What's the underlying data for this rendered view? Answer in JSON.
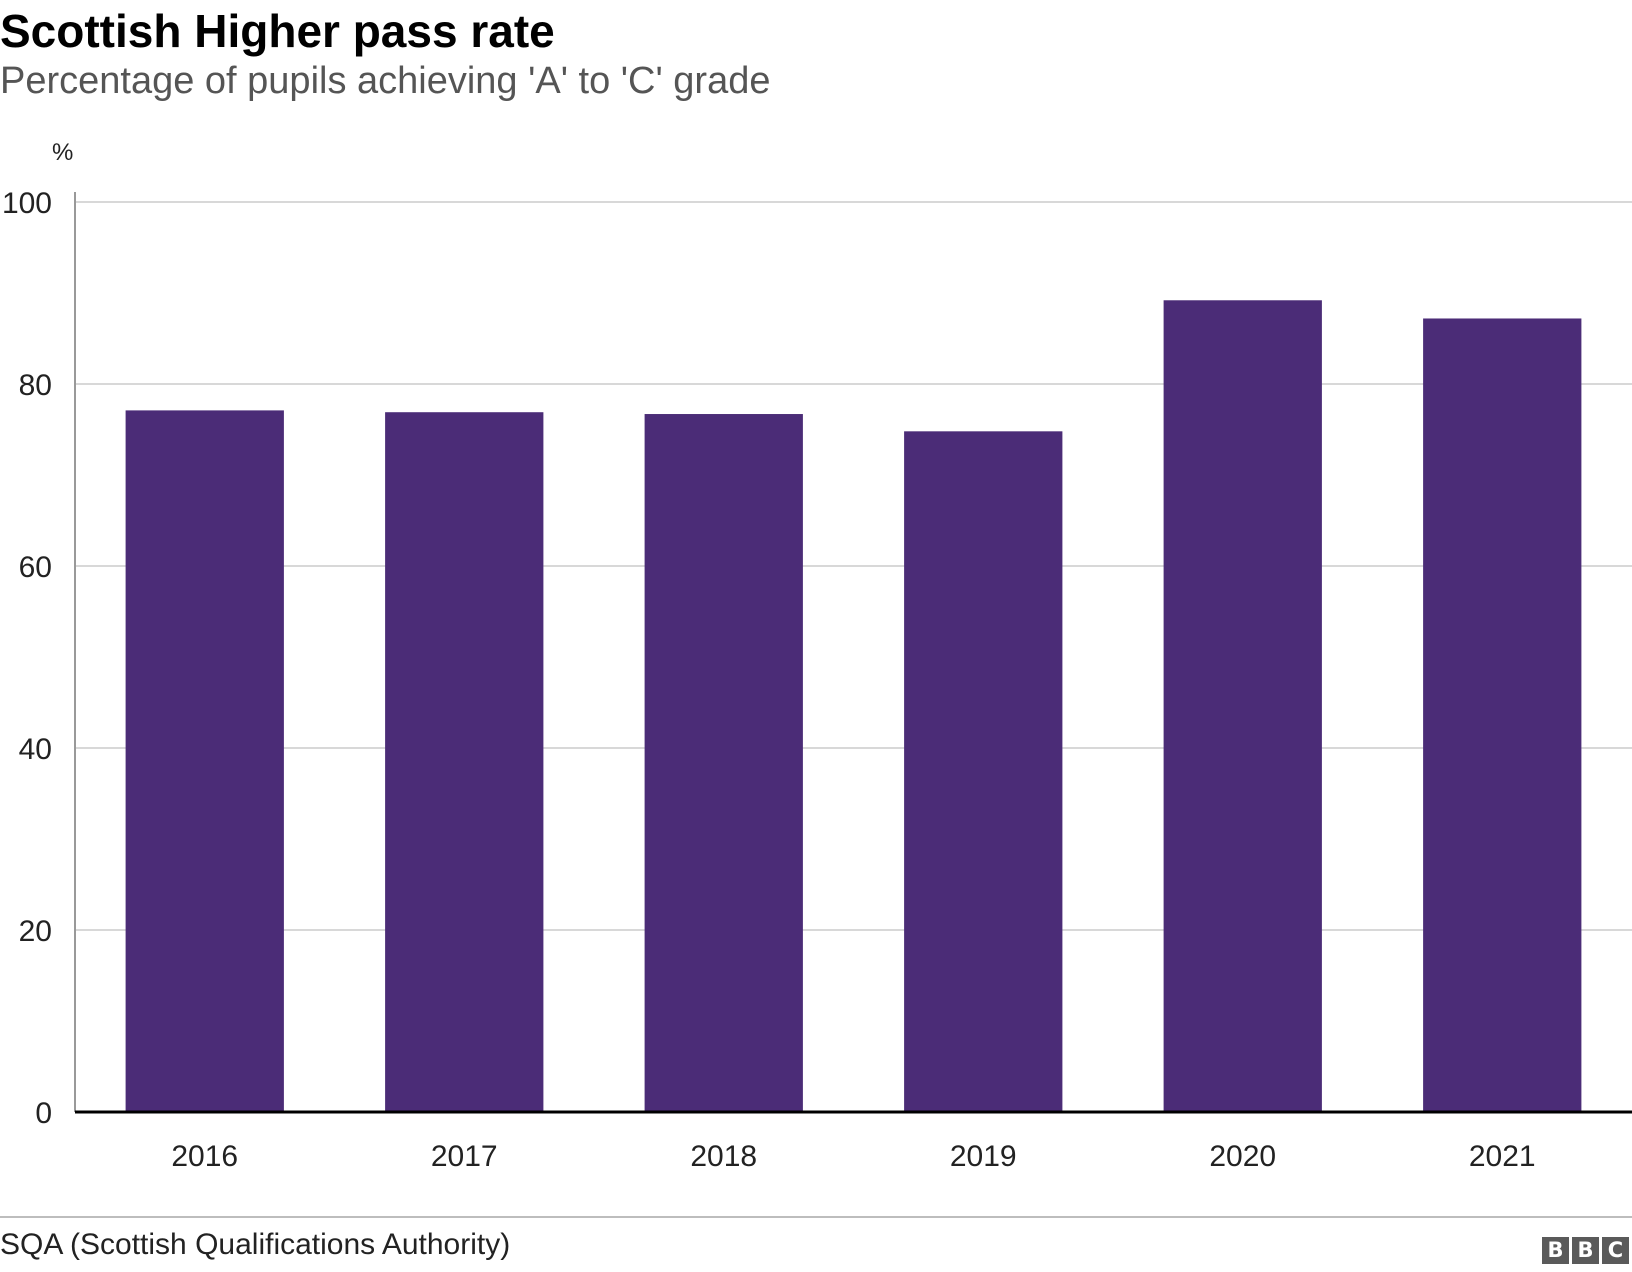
{
  "chart_data": {
    "type": "bar",
    "title": "Scottish Higher pass rate",
    "subtitle": "Percentage of pupils achieving 'A' to 'C' grade",
    "ylabel": "%",
    "xlabel": "",
    "categories": [
      "2016",
      "2017",
      "2018",
      "2019",
      "2020",
      "2021"
    ],
    "values": [
      77.1,
      76.9,
      76.7,
      74.8,
      89.2,
      87.2
    ],
    "ylim": [
      0,
      100
    ],
    "yticks": [
      0,
      20,
      40,
      60,
      80,
      100
    ],
    "grid": true,
    "legend": "none",
    "bar_color": "#4b2c77"
  },
  "footer": {
    "source": "SQA (Scottish Qualifications Authority)",
    "logo": [
      "B",
      "B",
      "C"
    ]
  }
}
